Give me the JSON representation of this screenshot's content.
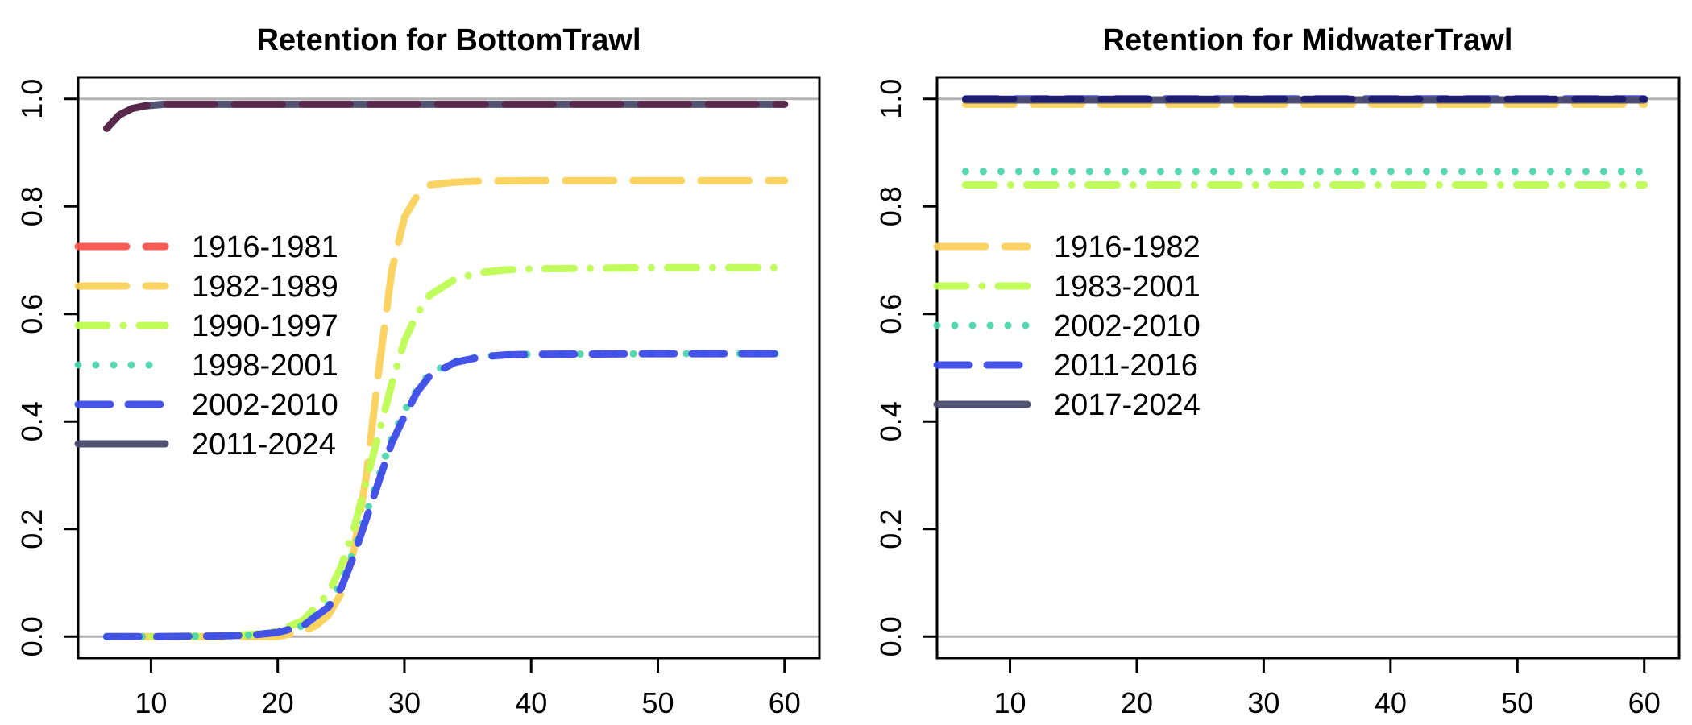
{
  "chart_data": [
    {
      "type": "line",
      "title": "Retention for BottomTrawl",
      "xlabel": "",
      "ylabel": "",
      "xlim": [
        4.25,
        62.75
      ],
      "ylim": [
        -0.04,
        1.04
      ],
      "xticks": [
        10,
        20,
        30,
        40,
        50,
        60
      ],
      "yticks": [
        0.0,
        0.2,
        0.4,
        0.6,
        0.8,
        1.0
      ],
      "reference_lines": [
        0,
        1
      ],
      "legend_position": "left",
      "series": [
        {
          "name": "1916-1981",
          "color": "#f8544c",
          "dash": "long",
          "x": [
            6.5,
            7.5,
            8.5,
            9.5,
            11,
            13,
            20,
            30,
            40,
            50,
            60
          ],
          "y": [
            0.945,
            0.97,
            0.982,
            0.987,
            0.99,
            0.99,
            0.99,
            0.99,
            0.99,
            0.99,
            0.99
          ]
        },
        {
          "name": "1982-1989",
          "color": "#fbd15b",
          "dash": "long",
          "x": [
            6.5,
            10,
            15,
            20,
            22,
            23,
            24,
            25,
            26,
            27,
            28,
            29,
            30,
            31,
            32,
            34,
            36,
            40,
            50,
            60
          ],
          "y": [
            0,
            0,
            0,
            0,
            0.01,
            0.02,
            0.04,
            0.08,
            0.16,
            0.3,
            0.5,
            0.68,
            0.78,
            0.82,
            0.84,
            0.845,
            0.847,
            0.848,
            0.848,
            0.848
          ]
        },
        {
          "name": "1990-1997",
          "color": "#bdfc52",
          "dash": "dotdash",
          "x": [
            6.5,
            10,
            15,
            18,
            20,
            22,
            24,
            25,
            26,
            27,
            28,
            29,
            30,
            31,
            32,
            34,
            36,
            38,
            40,
            50,
            60
          ],
          "y": [
            0,
            0,
            0.001,
            0.004,
            0.01,
            0.03,
            0.08,
            0.13,
            0.2,
            0.29,
            0.38,
            0.47,
            0.55,
            0.6,
            0.635,
            0.665,
            0.677,
            0.682,
            0.684,
            0.686,
            0.686
          ]
        },
        {
          "name": "1998-2001",
          "color": "#4cd5ac",
          "dash": "dot",
          "x": [
            6.5,
            10,
            15,
            18,
            20,
            22,
            24,
            25,
            26,
            27,
            28,
            29,
            30,
            31,
            32,
            34,
            36,
            38,
            40,
            50,
            60
          ],
          "y": [
            0,
            0,
            0.001,
            0.003,
            0.008,
            0.02,
            0.06,
            0.1,
            0.16,
            0.23,
            0.3,
            0.37,
            0.42,
            0.46,
            0.49,
            0.512,
            0.521,
            0.524,
            0.525,
            0.526,
            0.526
          ]
        },
        {
          "name": "2002-2010",
          "color": "#3d4be8",
          "dash": "medium",
          "x": [
            6.5,
            10,
            15,
            18,
            20,
            22,
            24,
            25,
            26,
            27,
            28,
            29,
            30,
            31,
            32,
            34,
            36,
            38,
            40,
            50,
            60
          ],
          "y": [
            0,
            0,
            0.001,
            0.003,
            0.008,
            0.02,
            0.055,
            0.09,
            0.15,
            0.22,
            0.29,
            0.36,
            0.41,
            0.455,
            0.485,
            0.51,
            0.52,
            0.524,
            0.525,
            0.526,
            0.526
          ]
        },
        {
          "name": "2011-2024",
          "color": "#494a6b",
          "dash": "solid",
          "x": [
            6.5,
            7.5,
            8.5,
            9.5,
            11,
            13,
            20,
            30,
            40,
            50,
            60
          ],
          "y": [
            0.945,
            0.97,
            0.982,
            0.987,
            0.99,
            0.99,
            0.99,
            0.99,
            0.99,
            0.99,
            0.99
          ]
        }
      ],
      "overlay": {
        "color": "#5a2548",
        "dash": "long",
        "x": [
          6.5,
          7.5,
          8.5,
          9.5,
          11,
          13,
          20,
          30,
          40,
          50,
          60
        ],
        "y": [
          0.945,
          0.97,
          0.982,
          0.987,
          0.99,
          0.99,
          0.99,
          0.99,
          0.99,
          0.99,
          0.99
        ]
      }
    },
    {
      "type": "line",
      "title": "Retention for MidwaterTrawl",
      "xlabel": "",
      "ylabel": "",
      "xlim": [
        4.25,
        62.75
      ],
      "ylim": [
        -0.04,
        1.04
      ],
      "xticks": [
        10,
        20,
        30,
        40,
        50,
        60
      ],
      "yticks": [
        0.0,
        0.2,
        0.4,
        0.6,
        0.8,
        1.0
      ],
      "reference_lines": [
        0,
        1
      ],
      "legend_position": "left",
      "series": [
        {
          "name": "1916-1982",
          "color": "#fbd15b",
          "dash": "long",
          "x": [
            6.5,
            60
          ],
          "y": [
            0.99,
            0.99
          ]
        },
        {
          "name": "1983-2001",
          "color": "#bdfc52",
          "dash": "dotdash",
          "x": [
            6.5,
            60
          ],
          "y": [
            0.84,
            0.84
          ]
        },
        {
          "name": "2002-2010",
          "color": "#4cd5ac",
          "dash": "dot",
          "x": [
            6.5,
            60
          ],
          "y": [
            0.865,
            0.865
          ]
        },
        {
          "name": "2011-2016",
          "color": "#3d4be8",
          "dash": "medium",
          "x": [
            6.5,
            60
          ],
          "y": [
            1.0,
            1.0
          ]
        },
        {
          "name": "2017-2024",
          "color": "#494a6b",
          "dash": "solid",
          "x": [
            6.5,
            60
          ],
          "y": [
            0.998,
            0.998
          ]
        }
      ],
      "overlay": {
        "color": "#1a1a6e",
        "dash": "long",
        "x": [
          6.5,
          60
        ],
        "y": [
          1.0,
          1.0
        ]
      }
    }
  ]
}
